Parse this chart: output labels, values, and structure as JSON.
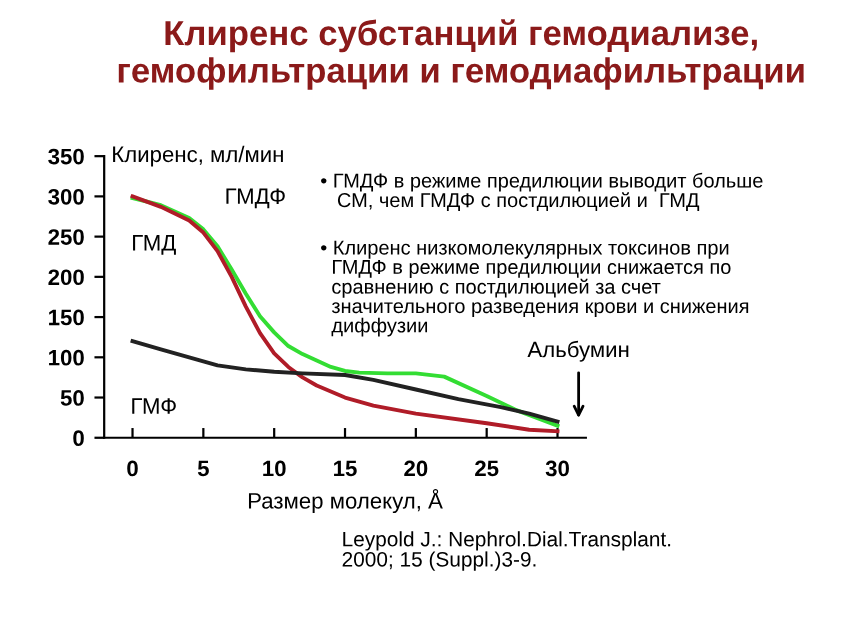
{
  "chart_data": {
    "type": "line",
    "title": "Клиренс субстанций гемодиализе,\nгемофильтрации и гемодиафильтрации",
    "xlabel": "Размер молекул, Å",
    "ylabel": "Клиренс, мл/мин",
    "xlim": [
      -2,
      32
    ],
    "xticks": [
      0,
      5,
      10,
      15,
      20,
      25,
      30
    ],
    "ylim": [
      0,
      350
    ],
    "yticks": [
      0,
      50,
      100,
      150,
      200,
      250,
      300,
      350
    ],
    "grid": false,
    "legend": false,
    "series": [
      {
        "name": "ГМДФ",
        "color": "#33dd33",
        "x": [
          0,
          2,
          4,
          5,
          6,
          7,
          8,
          9,
          10,
          11,
          12,
          13,
          14,
          15,
          16,
          18,
          20,
          22,
          25,
          27,
          30
        ],
        "values": [
          298,
          289,
          273,
          259,
          238,
          209,
          179,
          151,
          131,
          114,
          104,
          96,
          88,
          83,
          81,
          80,
          80,
          76,
          52,
          35,
          15
        ]
      },
      {
        "name": "ГМД",
        "color": "#b01c28",
        "x": [
          0,
          2,
          4,
          5,
          6,
          7,
          8,
          9,
          10,
          11,
          12,
          13,
          15,
          17,
          20,
          25,
          28,
          30
        ],
        "values": [
          300,
          287,
          270,
          255,
          232,
          200,
          163,
          130,
          105,
          88,
          75,
          65,
          50,
          40,
          30,
          18,
          10,
          8
        ]
      },
      {
        "name": "ГМФ",
        "color": "#222222",
        "x": [
          0,
          2,
          4,
          6,
          8,
          10,
          12,
          15,
          17,
          20,
          23,
          26,
          28,
          30
        ],
        "values": [
          120,
          110,
          100,
          90,
          85,
          82,
          80,
          78,
          72,
          60,
          48,
          38,
          30,
          20
        ]
      }
    ],
    "annotations": [
      "Альбумин",
      "• ГМДФ в режиме предилюции выводит больше\n   СМ, чем ГМДФ с постдилюцией и  ГМД",
      "• Клиренс низкомолекулярных токсинов при\n  ГМДФ в режиме предилюции снижается по\n  сравнению с постдилюцией за счет\n  значительного разведения крови и снижения\n  диффузии",
      "Leypold J.: Nephrol.Dial.Transplant.\n2000; 15 (Suppl.)3-9."
    ]
  }
}
